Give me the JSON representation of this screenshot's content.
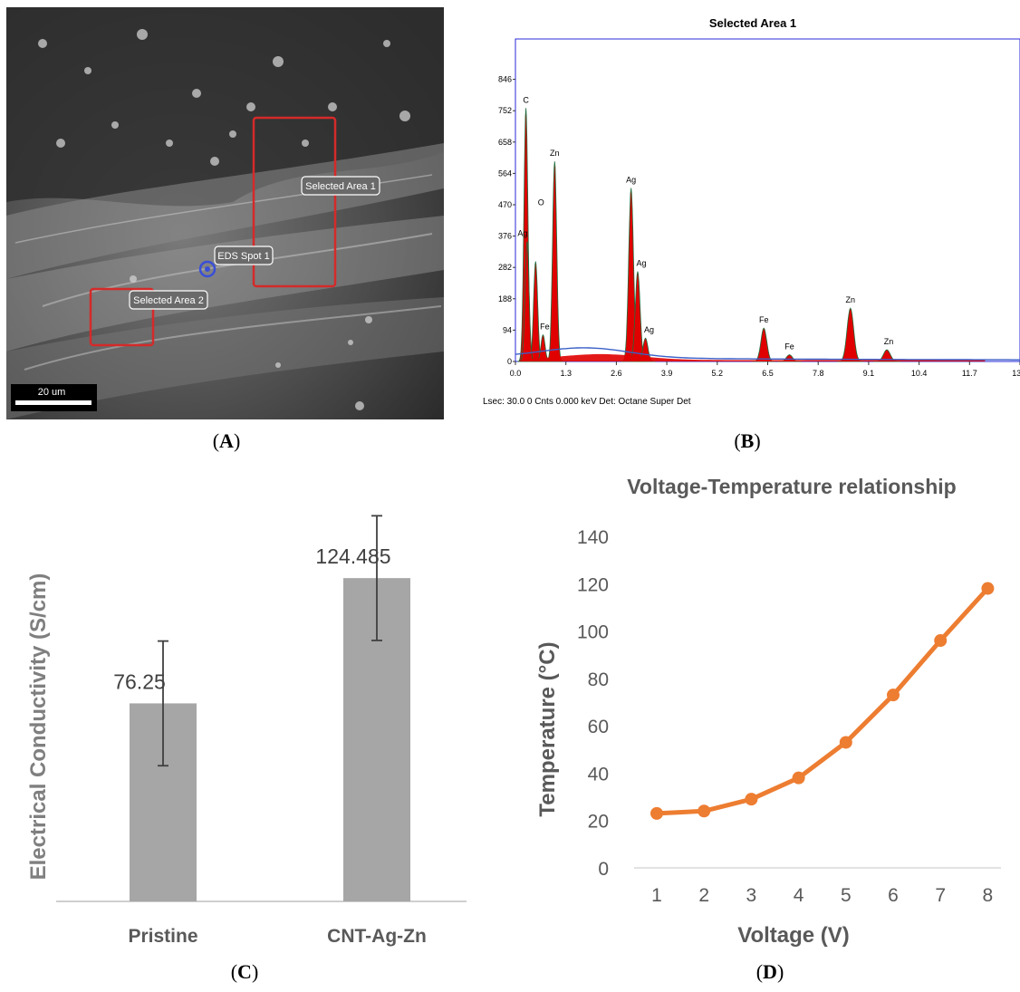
{
  "panels": {
    "a": {
      "open": "(",
      "letter": "A",
      "close": ")"
    },
    "b": {
      "open": "(",
      "letter": "B",
      "close": ")"
    },
    "c": {
      "open": "(",
      "letter": "C",
      "close": ")"
    },
    "d": {
      "open": "(",
      "letter": "D",
      "close": ")"
    }
  },
  "sem": {
    "annotations": {
      "selected_area_1": "Selected Area 1",
      "selected_area_2": "Selected Area 2",
      "eds_spot_1": "EDS Spot 1"
    },
    "scale_bar": "20 um",
    "colors": {
      "box": "#d42a2a",
      "spot": "#3a4fd8"
    }
  },
  "chart_data": [
    {
      "type": "area",
      "title": "Selected Area 1",
      "footer": "Lsec: 30.0 0 Cnts  0.000 keV Det: Octane Super Det",
      "x_ticks": [
        "0.0",
        "1.3",
        "2.6",
        "3.9",
        "5.2",
        "6.5",
        "7.8",
        "9.1",
        "10.4",
        "11.7",
        "13.0"
      ],
      "y_ticks": [
        "0",
        "94",
        "188",
        "282",
        "376",
        "470",
        "564",
        "658",
        "752",
        "846"
      ],
      "xlim": [
        0,
        13.0
      ],
      "ylim": [
        0,
        940
      ],
      "peaks": [
        {
          "label": "C",
          "x": 0.27,
          "y": 760
        },
        {
          "label": "O",
          "x": 0.52,
          "y": 300
        },
        {
          "label": "Ag",
          "x": 0.3,
          "y": 360
        },
        {
          "label": "Fe",
          "x": 0.71,
          "y": 80
        },
        {
          "label": "Zn",
          "x": 1.01,
          "y": 600
        },
        {
          "label": "Ag",
          "x": 2.98,
          "y": 520
        },
        {
          "label": "Ag",
          "x": 3.15,
          "y": 270
        },
        {
          "label": "Ag",
          "x": 3.35,
          "y": 70
        },
        {
          "label": "Fe",
          "x": 6.4,
          "y": 100
        },
        {
          "label": "Fe",
          "x": 7.06,
          "y": 20
        },
        {
          "label": "Zn",
          "x": 8.63,
          "y": 160
        },
        {
          "label": "Zn",
          "x": 9.57,
          "y": 35
        }
      ],
      "colors": {
        "fill": "#e00000",
        "background": "#3a5fc8",
        "frame": "#2a2ad8"
      }
    },
    {
      "type": "bar",
      "ylabel": "Electrical Conductivity (S/cm)",
      "categories": [
        "Pristine",
        "CNT-Ag-Zn"
      ],
      "values": [
        76.25,
        124.485
      ],
      "value_labels": [
        "76.25",
        "124.485"
      ],
      "errors": [
        24,
        24
      ],
      "ylim": [
        0,
        150
      ],
      "colors": {
        "bar": "#a6a6a6",
        "error": "#404040"
      }
    },
    {
      "type": "line",
      "title": "Voltage-Temperature relationship",
      "xlabel": "Voltage (V)",
      "ylabel": "Temperature (°C)",
      "x": [
        1,
        2,
        3,
        4,
        5,
        6,
        7,
        8
      ],
      "y": [
        23,
        24,
        29,
        38,
        53,
        73,
        96,
        118
      ],
      "x_ticks": [
        "1",
        "2",
        "3",
        "4",
        "5",
        "6",
        "7",
        "8"
      ],
      "y_ticks": [
        "0",
        "20",
        "40",
        "60",
        "80",
        "100",
        "120",
        "140"
      ],
      "ylim": [
        0,
        140
      ],
      "colors": {
        "line": "#ed7d31"
      }
    }
  ]
}
